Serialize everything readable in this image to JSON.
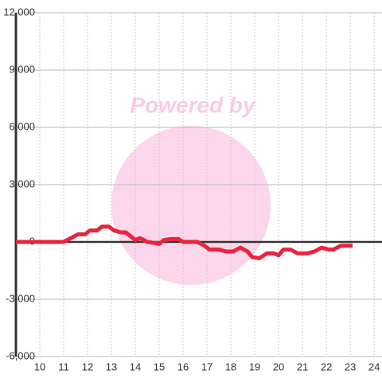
{
  "chart_data": {
    "type": "line",
    "watermark": "Powered by",
    "x": [
      9,
      10,
      10.7,
      11,
      11.3,
      11.6,
      11.9,
      12.1,
      12.4,
      12.6,
      12.9,
      13.1,
      13.4,
      13.6,
      13.8,
      14.0,
      14.2,
      14.5,
      14.8,
      15.0,
      15.2,
      15.5,
      15.8,
      16.0,
      16.4,
      16.6,
      16.9,
      17.1,
      17.5,
      17.8,
      18.1,
      18.4,
      18.7,
      18.9,
      19.2,
      19.5,
      19.8,
      20.0,
      20.2,
      20.5,
      20.8,
      21.2,
      21.5,
      21.8,
      22.1,
      22.3,
      22.6,
      23.1
    ],
    "series": [
      {
        "color": "#e8243f",
        "values": [
          0,
          0,
          0,
          0,
          200,
          400,
          400,
          600,
          600,
          800,
          800,
          600,
          500,
          500,
          300,
          100,
          200,
          0,
          -50,
          -100,
          100,
          150,
          150,
          0,
          0,
          0,
          -200,
          -400,
          -400,
          -500,
          -500,
          -300,
          -500,
          -800,
          -850,
          -600,
          -600,
          -700,
          -400,
          -400,
          -600,
          -600,
          -500,
          -300,
          -400,
          -400,
          -200,
          -200
        ]
      }
    ],
    "xlim": [
      9,
      24.33
    ],
    "xticks": [
      10,
      11,
      12,
      13,
      14,
      15,
      16,
      17,
      18,
      19,
      20,
      21,
      22,
      23,
      24
    ],
    "ylim": [
      -6000,
      12000
    ],
    "yticks": [
      {
        "value": -6000,
        "label": "-6,000"
      },
      {
        "value": -3000,
        "label": "-3,000"
      },
      0,
      {
        "value": 3000,
        "label": "3,000"
      },
      {
        "value": 6000,
        "label": "6,000"
      },
      {
        "value": 9000,
        "label": "9,000"
      },
      {
        "value": 12000,
        "label": "12,000"
      }
    ],
    "grid": true
  }
}
